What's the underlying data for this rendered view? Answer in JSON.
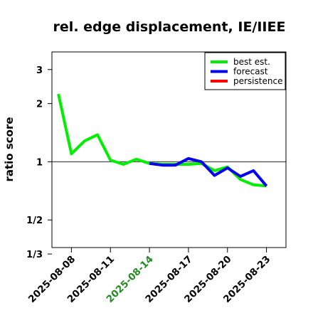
{
  "chart_data": {
    "type": "line",
    "title": "rel. edge displacement, IE/IIEE",
    "ylabel": "ratio score",
    "xlabel": "",
    "y_scale": "log",
    "ylim": [
      0.36,
      3.7
    ],
    "xlim": [
      "2025-08-06T12:00",
      "2025-08-24T12:00"
    ],
    "yticks": [
      {
        "value": 0.3333,
        "label": "1/3"
      },
      {
        "value": 0.5,
        "label": "1/2"
      },
      {
        "value": 1,
        "label": "1"
      },
      {
        "value": 2,
        "label": "2"
      },
      {
        "value": 3,
        "label": "3"
      }
    ],
    "xticks": [
      {
        "date": "2025-08-08",
        "label": "2025-08-08",
        "color": "#000000"
      },
      {
        "date": "2025-08-11",
        "label": "2025-08-11",
        "color": "#000000"
      },
      {
        "date": "2025-08-14",
        "label": "2025-08-14",
        "color": "#228B22"
      },
      {
        "date": "2025-08-17",
        "label": "2025-08-17",
        "color": "#000000"
      },
      {
        "date": "2025-08-20",
        "label": "2025-08-20",
        "color": "#000000"
      },
      {
        "date": "2025-08-23",
        "label": "2025-08-23",
        "color": "#000000"
      }
    ],
    "reference_line": 1,
    "legend_position": "top-right",
    "series": [
      {
        "name": "best est.",
        "color": "#00ee00",
        "points": [
          {
            "x": "2025-08-07",
            "y": 2.24
          },
          {
            "x": "2025-08-08",
            "y": 1.1
          },
          {
            "x": "2025-08-09",
            "y": 1.28
          },
          {
            "x": "2025-08-10",
            "y": 1.38
          },
          {
            "x": "2025-08-11",
            "y": 1.02
          },
          {
            "x": "2025-08-12",
            "y": 0.97
          },
          {
            "x": "2025-08-13",
            "y": 1.03
          },
          {
            "x": "2025-08-14",
            "y": 0.98
          },
          {
            "x": "2025-08-15",
            "y": 0.97
          },
          {
            "x": "2025-08-16",
            "y": 0.97
          },
          {
            "x": "2025-08-17",
            "y": 0.97
          },
          {
            "x": "2025-08-18",
            "y": 0.98
          },
          {
            "x": "2025-08-19",
            "y": 0.9
          },
          {
            "x": "2025-08-20",
            "y": 0.94
          },
          {
            "x": "2025-08-21",
            "y": 0.81
          },
          {
            "x": "2025-08-22",
            "y": 0.76
          },
          {
            "x": "2025-08-23",
            "y": 0.75
          }
        ]
      },
      {
        "name": "forecast",
        "color": "#0000ee",
        "points": [
          {
            "x": "2025-08-14",
            "y": 0.98
          },
          {
            "x": "2025-08-15",
            "y": 0.96
          },
          {
            "x": "2025-08-16",
            "y": 0.96
          },
          {
            "x": "2025-08-17",
            "y": 1.04
          },
          {
            "x": "2025-08-18",
            "y": 1.0
          },
          {
            "x": "2025-08-19",
            "y": 0.85
          },
          {
            "x": "2025-08-20",
            "y": 0.93
          },
          {
            "x": "2025-08-21",
            "y": 0.84
          },
          {
            "x": "2025-08-22",
            "y": 0.9
          },
          {
            "x": "2025-08-23",
            "y": 0.75
          }
        ]
      },
      {
        "name": "persistence",
        "color": "#ff0000",
        "points": []
      }
    ]
  }
}
